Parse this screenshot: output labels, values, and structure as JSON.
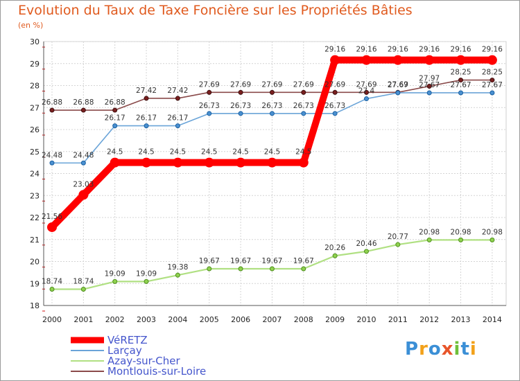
{
  "chart_data": {
    "type": "line",
    "title": "Evolution du Taux de Taxe Foncière sur les Propriétés Bâties",
    "unit_label": "(en %)",
    "xlabel": "",
    "ylabel": "",
    "ylim": [
      18,
      30
    ],
    "yticks": [
      18,
      19,
      20,
      21,
      22,
      23,
      24,
      25,
      26,
      27,
      28,
      29,
      30
    ],
    "x": [
      "2000",
      "2001",
      "2002",
      "2003",
      "2004",
      "2005",
      "2006",
      "2007",
      "2008",
      "2009",
      "2010",
      "2011",
      "2012",
      "2013",
      "2014"
    ],
    "series": [
      {
        "name": "VéRETZ",
        "color": "#ff0000",
        "values": [
          21.56,
          23.03,
          24.5,
          24.5,
          24.5,
          24.5,
          24.5,
          24.5,
          24.5,
          29.16,
          29.16,
          29.16,
          29.16,
          29.16,
          29.16
        ]
      },
      {
        "name": "Larçay",
        "color": "#4a90d0",
        "values": [
          24.48,
          24.48,
          26.17,
          26.17,
          26.17,
          26.73,
          26.73,
          26.73,
          26.73,
          26.73,
          27.4,
          27.67,
          27.67,
          27.67,
          27.67
        ]
      },
      {
        "name": "Azay-sur-Cher",
        "color": "#9ad85a",
        "values": [
          18.74,
          18.74,
          19.09,
          19.09,
          19.38,
          19.67,
          19.67,
          19.67,
          19.67,
          20.26,
          20.46,
          20.77,
          20.98,
          20.98,
          20.98
        ]
      },
      {
        "name": "Montlouis-sur-Loire",
        "color": "#7a2a2a",
        "values": [
          26.88,
          26.88,
          26.88,
          27.42,
          27.42,
          27.69,
          27.69,
          27.69,
          27.69,
          27.69,
          27.69,
          27.69,
          27.97,
          28.25,
          28.25
        ]
      }
    ],
    "legend": "bottom-left"
  },
  "logo": {
    "text": "Proxiti",
    "letters": [
      "P",
      "r",
      "o",
      "x",
      "i",
      "t",
      "i"
    ],
    "colors": [
      "#3b8fd6",
      "#f2a11a",
      "#3b8fd6",
      "#e8552a",
      "#6fbf3a",
      "#3b8fd6",
      "#f2a11a"
    ]
  }
}
